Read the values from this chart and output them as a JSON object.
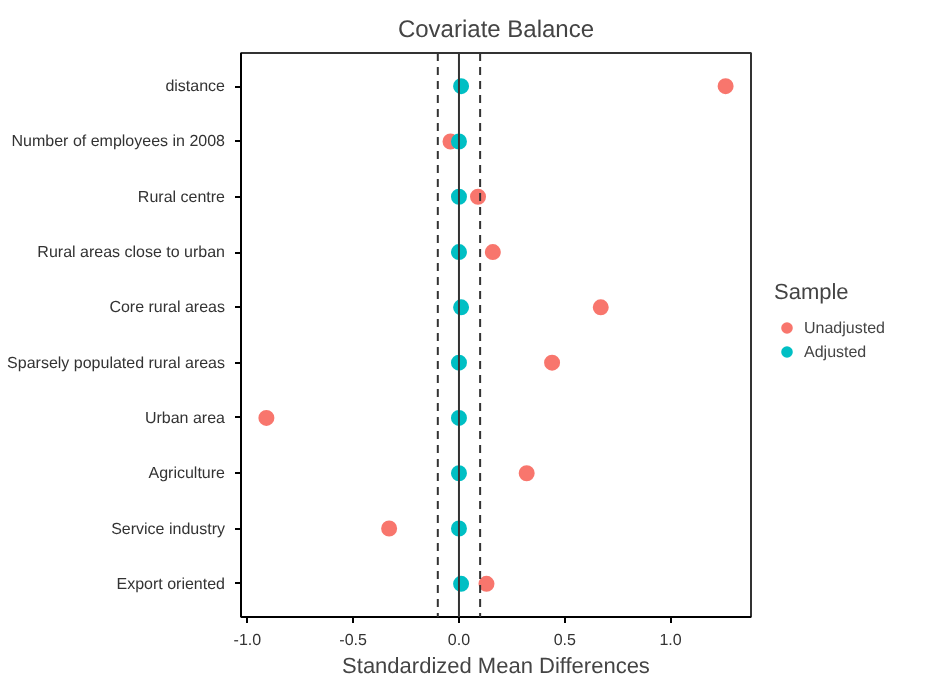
{
  "chart_data": {
    "type": "scatter",
    "title": "Covariate Balance",
    "xlabel": "Standardized Mean Differences",
    "legend_title": "Sample",
    "legend": "right",
    "grid": false,
    "marker": "circle",
    "categories": [
      "distance",
      "Number of employees in 2008",
      "Rural centre",
      "Rural areas close to urban",
      "Core rural areas",
      "Sparsely populated rural areas",
      "Urban area",
      "Agriculture",
      "Service industry",
      "Export oriented"
    ],
    "orientation": "horizontal",
    "xlim": [
      -1.03,
      1.38
    ],
    "xticks": [
      {
        "value": -1,
        "label": "-1.0"
      },
      {
        "value": -0.5,
        "label": "-0.5"
      },
      {
        "value": 0,
        "label": "0.0"
      },
      {
        "value": 0.5,
        "label": "0.5"
      },
      {
        "value": 1,
        "label": "1.0"
      }
    ],
    "series": [
      {
        "name": "Unadjusted",
        "color": "#f8766d",
        "values": [
          1.26,
          -0.04,
          0.09,
          0.16,
          0.67,
          0.44,
          -0.91,
          0.32,
          -0.33,
          0.13
        ]
      },
      {
        "name": "Adjusted",
        "color": "#00bfc4",
        "values": [
          0.01,
          0.0,
          0.0,
          0.0,
          0.01,
          0.0,
          0.0,
          0.0,
          0.0,
          0.01
        ]
      }
    ],
    "ref_lines": [
      {
        "axis": "x",
        "value": 0,
        "color": "#333333",
        "line_style": "solid"
      },
      {
        "axis": "x",
        "value": -0.1,
        "color": "#333333",
        "line_style": "dashed"
      },
      {
        "axis": "x",
        "value": 0.1,
        "color": "#333333",
        "line_style": "dashed"
      }
    ]
  }
}
